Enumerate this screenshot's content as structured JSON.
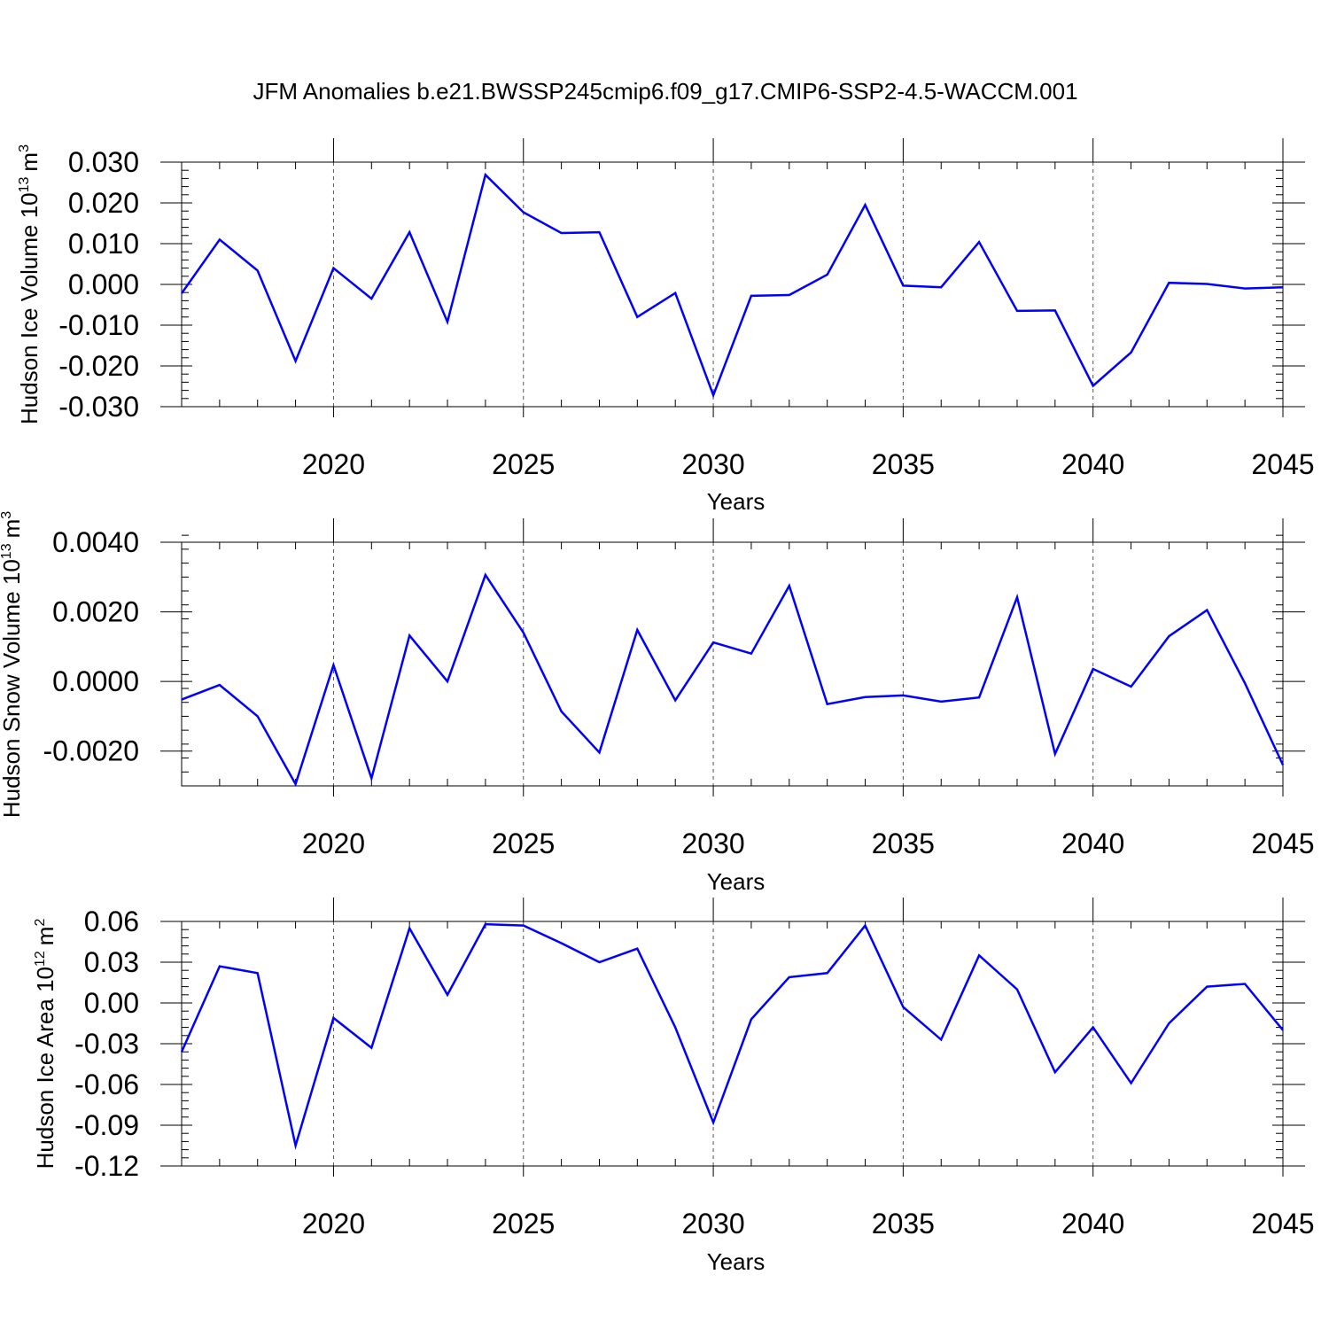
{
  "title": "JFM Anomalies b.e21.BWSSP245cmip6.f09_g17.CMIP6-SSP2-4.5-WACCM.001",
  "colors": {
    "series": "#0000ff",
    "axes": "#000000",
    "grid": "#555555"
  },
  "chart_data": [
    {
      "type": "line",
      "title": "",
      "xlabel": "Years",
      "ylabel": "Hudson Ice Volume 10",
      "ylabel_exponent": "13",
      "ylabel_unit": "m",
      "ylabel_unit_exponent": "3",
      "xlim": [
        2016,
        2045
      ],
      "ylim": [
        -0.03,
        0.03
      ],
      "x_ticks": [
        2020,
        2025,
        2030,
        2035,
        2040,
        2045
      ],
      "x_tick_labels": [
        "2020",
        "2025",
        "2030",
        "2035",
        "2040",
        "2045"
      ],
      "y_ticks": [
        0.03,
        0.02,
        0.01,
        0.0,
        -0.01,
        -0.02,
        -0.03
      ],
      "y_tick_labels": [
        "0.030",
        "0.020",
        "0.010",
        "0.000",
        "-0.010",
        "-0.020",
        "-0.030"
      ],
      "y_minor_step": 0.002,
      "grid": "dashed vertical at major x ticks",
      "x": [
        2016,
        2017,
        2018,
        2019,
        2020,
        2021,
        2022,
        2023,
        2024,
        2025,
        2026,
        2027,
        2028,
        2029,
        2030,
        2031,
        2032,
        2033,
        2034,
        2035,
        2036,
        2037,
        2038,
        2039,
        2040,
        2041,
        2042,
        2043,
        2044,
        2045
      ],
      "series": [
        {
          "name": "Hudson Ice Volume",
          "values": [
            -0.0022,
            0.011,
            0.0034,
            -0.0188,
            0.004,
            -0.0035,
            0.0128,
            -0.0092,
            0.0269,
            0.0177,
            0.0126,
            0.0128,
            -0.008,
            -0.0021,
            -0.0272,
            -0.0028,
            -0.0026,
            0.0024,
            0.0195,
            -0.0003,
            -0.0007,
            0.0104,
            -0.0065,
            -0.0064,
            -0.0249,
            -0.0167,
            0.0004,
            0.0001,
            -0.001,
            -0.0007
          ]
        }
      ]
    },
    {
      "type": "line",
      "title": "",
      "xlabel": "Years",
      "ylabel": "Hudson Snow Volume 10",
      "ylabel_exponent": "13",
      "ylabel_unit": "m",
      "ylabel_unit_exponent": "3",
      "xlim": [
        2016,
        2045
      ],
      "ylim": [
        -0.003,
        0.004
      ],
      "x_ticks": [
        2020,
        2025,
        2030,
        2035,
        2040,
        2045
      ],
      "x_tick_labels": [
        "2020",
        "2025",
        "2030",
        "2035",
        "2040",
        "2045"
      ],
      "y_ticks": [
        0.004,
        0.002,
        0.0,
        -0.002
      ],
      "y_tick_labels": [
        "0.0040",
        "0.0020",
        "0.0000",
        "-0.0020"
      ],
      "y_minor_step": 0.0004,
      "grid": "dashed vertical at major x ticks",
      "x": [
        2016,
        2017,
        2018,
        2019,
        2020,
        2021,
        2022,
        2023,
        2024,
        2025,
        2026,
        2027,
        2028,
        2029,
        2030,
        2031,
        2032,
        2033,
        2034,
        2035,
        2036,
        2037,
        2038,
        2039,
        2040,
        2041,
        2042,
        2043,
        2044,
        2045
      ],
      "series": [
        {
          "name": "Hudson Snow Volume",
          "values": [
            -0.00052,
            -0.0001,
            -0.001,
            -0.00295,
            0.00047,
            -0.00278,
            0.00132,
            0.0,
            0.00306,
            0.0014,
            -0.00086,
            -0.00204,
            0.00148,
            -0.00054,
            0.00112,
            0.0008,
            0.00275,
            -0.00065,
            -0.00045,
            -0.0004,
            -0.00058,
            -0.00046,
            0.00242,
            -0.00208,
            0.00036,
            -0.00015,
            0.0013,
            0.00205,
            -5e-05,
            -0.0024
          ]
        }
      ]
    },
    {
      "type": "line",
      "title": "",
      "xlabel": "Years",
      "ylabel": "Hudson Ice Area 10",
      "ylabel_exponent": "12",
      "ylabel_unit": "m",
      "ylabel_unit_exponent": "2",
      "xlim": [
        2016,
        2045
      ],
      "ylim": [
        -0.12,
        0.06
      ],
      "x_ticks": [
        2020,
        2025,
        2030,
        2035,
        2040,
        2045
      ],
      "x_tick_labels": [
        "2020",
        "2025",
        "2030",
        "2035",
        "2040",
        "2045"
      ],
      "y_ticks": [
        0.06,
        0.03,
        0.0,
        -0.03,
        -0.06,
        -0.09,
        -0.12
      ],
      "y_tick_labels": [
        "0.06",
        "0.03",
        "0.00",
        "-0.03",
        "-0.06",
        "-0.09",
        "-0.12"
      ],
      "y_minor_step": 0.006,
      "grid": "dashed vertical at major x ticks",
      "x": [
        2016,
        2017,
        2018,
        2019,
        2020,
        2021,
        2022,
        2023,
        2024,
        2025,
        2026,
        2027,
        2028,
        2029,
        2030,
        2031,
        2032,
        2033,
        2034,
        2035,
        2036,
        2037,
        2038,
        2039,
        2040,
        2041,
        2042,
        2043,
        2044,
        2045
      ],
      "series": [
        {
          "name": "Hudson Ice Area",
          "values": [
            -0.036,
            0.027,
            0.022,
            -0.105,
            -0.011,
            -0.033,
            0.055,
            0.006,
            0.058,
            0.057,
            0.044,
            0.03,
            0.04,
            -0.018,
            -0.088,
            -0.012,
            0.019,
            0.022,
            0.057,
            -0.003,
            -0.027,
            0.035,
            0.01,
            -0.051,
            -0.018,
            -0.059,
            -0.015,
            0.012,
            0.014,
            -0.02
          ]
        }
      ]
    }
  ]
}
